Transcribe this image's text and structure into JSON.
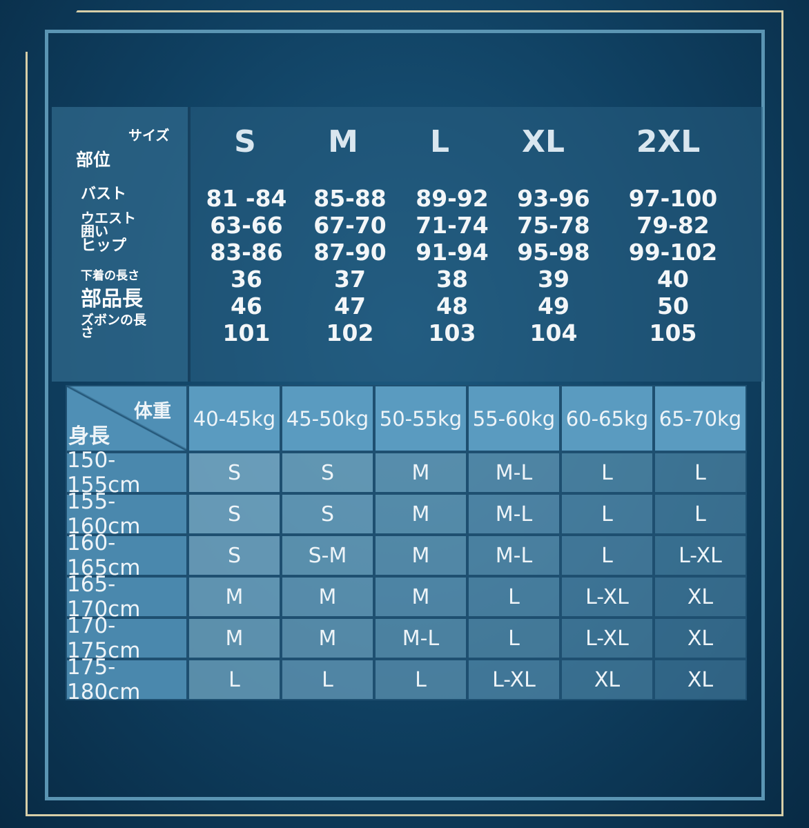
{
  "top_table": {
    "corner_size_label": "サイズ",
    "corner_part_label": "部位",
    "sizes": [
      "S",
      "M",
      "L",
      "XL",
      "2XL"
    ],
    "rows": [
      {
        "label": "バスト",
        "values": [
          "81 -84",
          "85-88",
          "89-92",
          "93-96",
          "97-100"
        ]
      },
      {
        "label": "ウエスト 囲い",
        "values": [
          "63-66",
          "67-70",
          "71-74",
          "75-78",
          "79-82"
        ]
      },
      {
        "label": "ヒップ",
        "values": [
          "83-86",
          "87-90",
          "91-94",
          "95-98",
          "99-102"
        ]
      },
      {
        "label": "下着の長さ",
        "values": [
          "36",
          "37",
          "38",
          "39",
          "40"
        ]
      },
      {
        "label": "部品長",
        "values": [
          "46",
          "47",
          "48",
          "49",
          "50"
        ]
      },
      {
        "label": "ズボンの長さ",
        "values": [
          "101",
          "102",
          "103",
          "104",
          "105"
        ]
      }
    ]
  },
  "bottom_table": {
    "corner_weight_label": "体重",
    "corner_height_label": "身長",
    "weights": [
      "40-45kg",
      "45-50kg",
      "50-55kg",
      "55-60kg",
      "60-65kg",
      "65-70kg"
    ],
    "rows": [
      {
        "height": "150-155cm",
        "sizes": [
          "S",
          "S",
          "M",
          "M-L",
          "L",
          "L"
        ]
      },
      {
        "height": "155-160cm",
        "sizes": [
          "S",
          "S",
          "M",
          "M-L",
          "L",
          "L"
        ]
      },
      {
        "height": "160-165cm",
        "sizes": [
          "S",
          "S-M",
          "M",
          "M-L",
          "L",
          "L-XL"
        ]
      },
      {
        "height": "165-170cm",
        "sizes": [
          "M",
          "M",
          "M",
          "L",
          "L-XL",
          "XL"
        ]
      },
      {
        "height": "170-175cm",
        "sizes": [
          "M",
          "M",
          "M-L",
          "L",
          "L-XL",
          "XL"
        ]
      },
      {
        "height": "175-180cm",
        "sizes": [
          "L",
          "L",
          "L",
          "L-XL",
          "XL",
          "XL"
        ]
      }
    ]
  },
  "colors": {
    "frame_gold": "#d8cfa8",
    "frame_blue": "#5b95b3",
    "background": "#0f3f60"
  }
}
